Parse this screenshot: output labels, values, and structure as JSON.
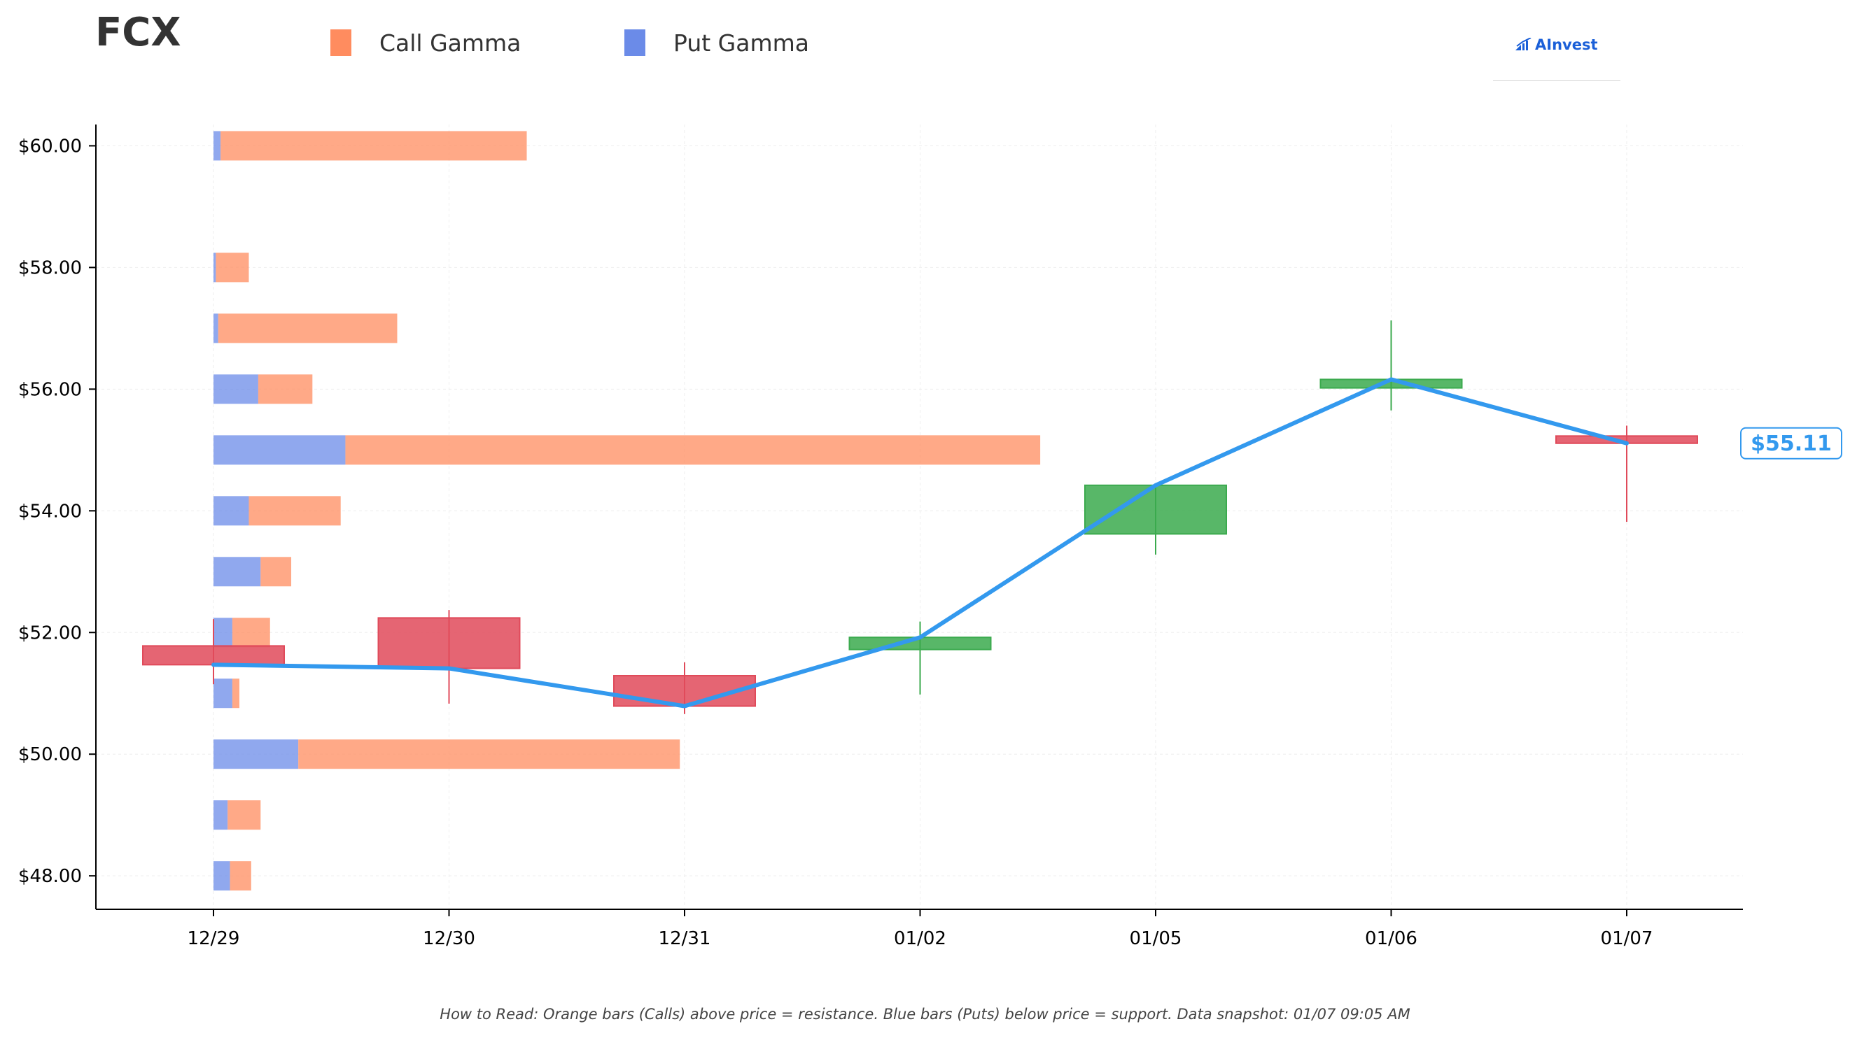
{
  "ticker": "FCX",
  "legend": {
    "call_label": "Call Gamma",
    "put_label": "Put Gamma"
  },
  "logo": {
    "text": "AInvest",
    "icon": "ainvest-logo-icon"
  },
  "last_price_label": "$55.11",
  "footer": "How to Read: Orange bars (Calls) above price = resistance. Blue bars (Puts) below price = support. Data snapshot: 01/07 09:05 AM",
  "colors": {
    "call": "#FF8C5F",
    "put": "#6B8BE8",
    "up": "#3BAA4E",
    "down": "#E04A5A",
    "price_line": "#3399EE",
    "axis": "#000000",
    "grid": "#eeeeee"
  },
  "chart_data": {
    "type": "candlestick+horizontal-bar",
    "dates": [
      "12/29",
      "12/30",
      "12/31",
      "01/02",
      "01/05",
      "01/06",
      "01/07"
    ],
    "ylim": [
      47.45,
      60.35
    ],
    "y_ticks": [
      48,
      50,
      52,
      54,
      56,
      58,
      60
    ],
    "y_tick_labels": [
      "$48.00",
      "$50.00",
      "$52.00",
      "$54.00",
      "$56.00",
      "$58.00",
      "$60.00"
    ],
    "grid": true,
    "candles": [
      {
        "date": "12/29",
        "open": 51.78,
        "close": 51.47,
        "high": 52.22,
        "low": 51.15
      },
      {
        "date": "12/30",
        "open": 52.24,
        "close": 51.41,
        "high": 52.37,
        "low": 50.83
      },
      {
        "date": "12/31",
        "open": 51.29,
        "close": 50.79,
        "high": 51.51,
        "low": 50.66
      },
      {
        "date": "01/02",
        "open": 51.72,
        "close": 51.92,
        "high": 52.18,
        "low": 50.98
      },
      {
        "date": "01/05",
        "open": 53.62,
        "close": 54.42,
        "high": 54.42,
        "low": 53.28
      },
      {
        "date": "01/06",
        "open": 56.02,
        "close": 56.16,
        "high": 57.13,
        "low": 55.65
      },
      {
        "date": "01/07",
        "open": 55.23,
        "close": 55.11,
        "high": 55.4,
        "low": 53.82
      }
    ],
    "price_line": [
      51.47,
      51.41,
      50.79,
      51.92,
      54.42,
      56.16,
      55.11
    ],
    "gamma_units": "fraction of day spacing",
    "gamma": [
      {
        "strike": 60,
        "put": 0.03,
        "call": 1.3
      },
      {
        "strike": 58,
        "put": 0.01,
        "call": 0.14
      },
      {
        "strike": 57,
        "put": 0.02,
        "call": 0.76
      },
      {
        "strike": 56,
        "put": 0.19,
        "call": 0.23
      },
      {
        "strike": 55,
        "put": 0.56,
        "call": 2.95
      },
      {
        "strike": 54,
        "put": 0.15,
        "call": 0.39
      },
      {
        "strike": 53,
        "put": 0.2,
        "call": 0.13
      },
      {
        "strike": 52,
        "put": 0.08,
        "call": 0.16
      },
      {
        "strike": 51,
        "put": 0.08,
        "call": 0.03
      },
      {
        "strike": 50,
        "put": 0.36,
        "call": 1.62
      },
      {
        "strike": 49,
        "put": 0.06,
        "call": 0.14
      },
      {
        "strike": 48,
        "put": 0.07,
        "call": 0.09
      }
    ]
  }
}
